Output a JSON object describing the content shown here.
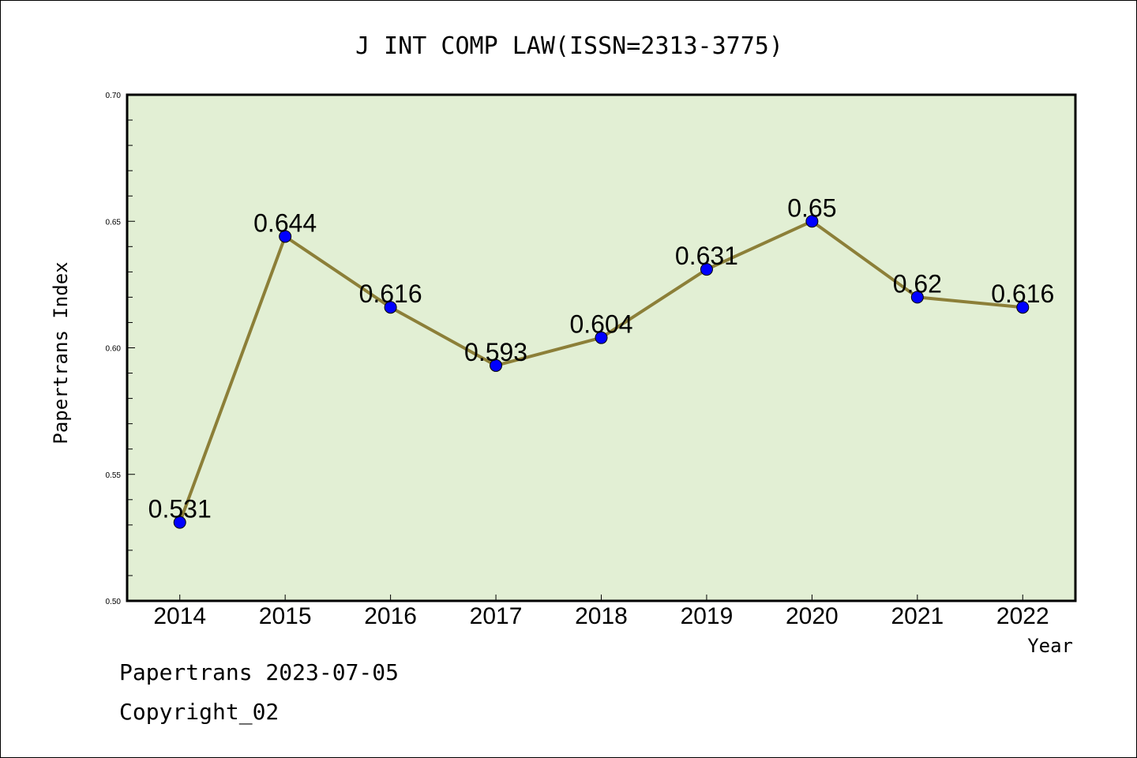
{
  "colors": {
    "plot_background": "#e2efd4",
    "line": "#8c7f38",
    "marker": "#0000ff",
    "axis": "#000000"
  },
  "footer": {
    "source": "Papertrans 2023-07-05",
    "copyright": "Copyright_02"
  },
  "chart_data": {
    "type": "line",
    "title": "J INT COMP LAW(ISSN=2313-3775)",
    "xlabel": "Year",
    "ylabel": "Papertrans Index",
    "categories": [
      "2014",
      "2015",
      "2016",
      "2017",
      "2018",
      "2019",
      "2020",
      "2021",
      "2022"
    ],
    "series": [
      {
        "values": [
          0.531,
          0.644,
          0.616,
          0.593,
          0.604,
          0.631,
          0.65,
          0.62,
          0.616
        ],
        "data_labels": [
          "0.531",
          "0.644",
          "0.616",
          "0.593",
          "0.604",
          "0.631",
          "0.65",
          "0.62",
          "0.616"
        ]
      }
    ],
    "ylim": [
      0.5,
      0.7
    ],
    "y_ticks": [
      "0.50",
      "0.55",
      "0.60",
      "0.65",
      "0.70"
    ],
    "y_tick_values": [
      0.5,
      0.55,
      0.6,
      0.65,
      0.7
    ],
    "y_minor_step": 0.01,
    "grid": false,
    "legend": "none"
  }
}
